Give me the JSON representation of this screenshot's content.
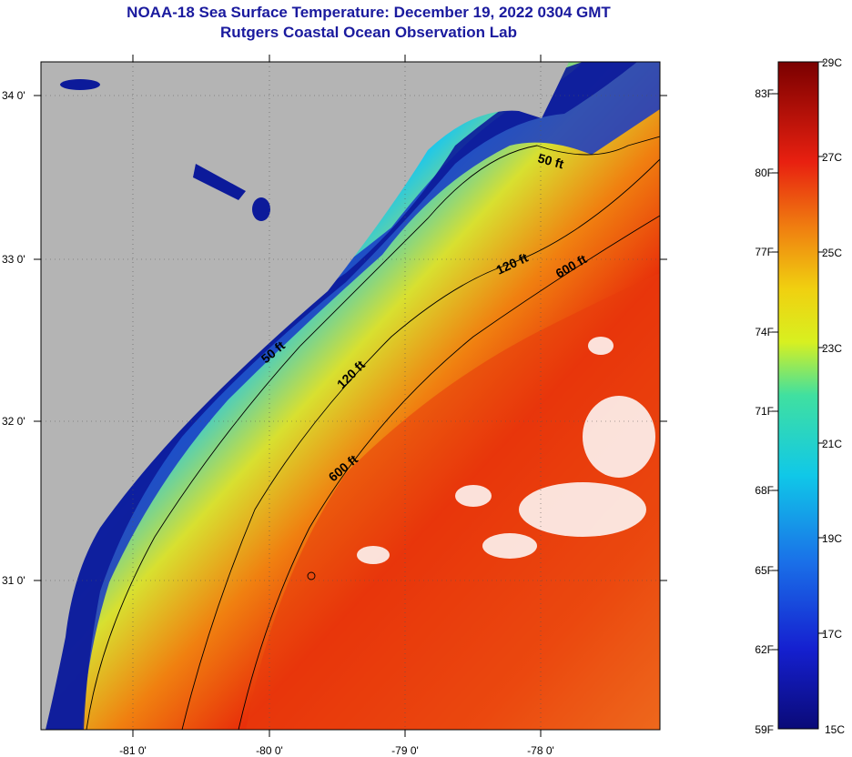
{
  "title": "NOAA-18 Sea Surface Temperature:  December 19, 2022 0304 GMT",
  "subtitle": "Rutgers Coastal Ocean Observation Lab",
  "map": {
    "lat_labels": [
      "34 0'",
      "33 0'",
      "32 0'",
      "31 0'"
    ],
    "lon_labels": [
      "-81 0'",
      "-80 0'",
      "-79 0'",
      "-78 0'"
    ],
    "contour_labels": [
      "50 ft",
      "120 ft",
      "600 ft",
      "50 ft",
      "120 ft",
      "600 ft"
    ]
  },
  "colorbar": {
    "fahrenheit": [
      "83F",
      "80F",
      "77F",
      "74F",
      "71F",
      "68F",
      "65F",
      "62F",
      "59F"
    ],
    "celsius": [
      "29C",
      "27C",
      "25C",
      "23C",
      "21C",
      "19C",
      "17C",
      "15C"
    ]
  },
  "colors": {
    "title": "#1a1a9e",
    "land": "#b4b4b4",
    "cloud": "#ffffff",
    "cold": "#0a1590",
    "warm": "#e8300a"
  }
}
